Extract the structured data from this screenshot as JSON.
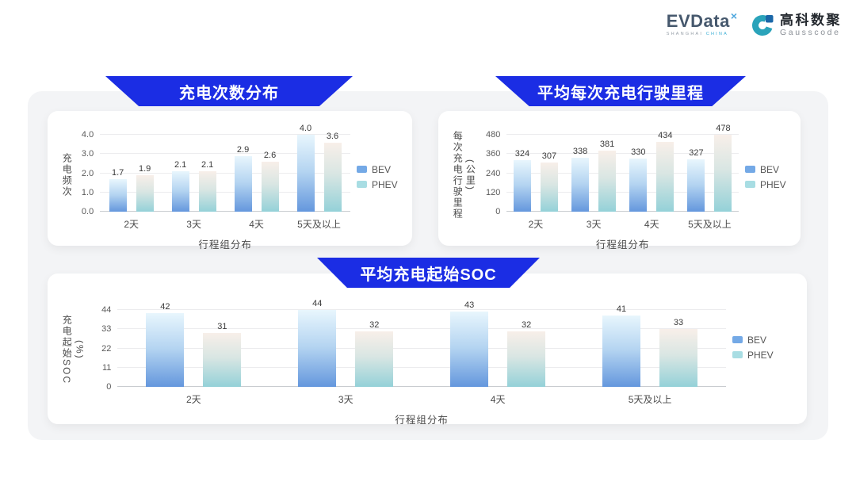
{
  "header": {
    "evdata": {
      "text": "EVData",
      "sup": "×",
      "sub_left": "SHANGHAI",
      "sub_right": "CHINA"
    },
    "gausscode": {
      "icon": "gausscode-g-icon",
      "name_cn": "高科数聚",
      "name_en": "Gausscode"
    }
  },
  "colors": {
    "banner_blue": "#1b2de4",
    "panel_gray": "#f3f4f6",
    "bev_bar_top": "#e8f6fd",
    "bev_bar_bottom": "#6497dd",
    "phev_bar_top": "#f8efe9",
    "phev_bar_bottom": "#94d1d8",
    "legend_bev_swatch": "#74a9e6",
    "legend_phev_swatch": "#a8dde3"
  },
  "chart_data": [
    {
      "type": "bar",
      "title": "充电次数分布",
      "categories": [
        "2天",
        "3天",
        "4天",
        "5天及以上"
      ],
      "series": [
        {
          "name": "BEV",
          "values": [
            1.7,
            2.1,
            2.9,
            4.0
          ],
          "labels": [
            "1.7",
            "2.1",
            "2.9",
            "4.0"
          ]
        },
        {
          "name": "PHEV",
          "values": [
            1.9,
            2.1,
            2.6,
            3.6
          ],
          "labels": [
            "1.9",
            "2.1",
            "2.6",
            "3.6"
          ]
        }
      ],
      "xlabel": "行程组分布",
      "ylabel": "充电频次",
      "ylabel_unit": "",
      "ylim": [
        0,
        4
      ],
      "yticks": [
        "0.0",
        "1.0",
        "2.0",
        "3.0",
        "4.0"
      ],
      "grid": true,
      "legend_position": "right"
    },
    {
      "type": "bar",
      "title": "平均每次充电行驶里程",
      "categories": [
        "2天",
        "3天",
        "4天",
        "5天及以上"
      ],
      "series": [
        {
          "name": "BEV",
          "values": [
            324,
            338,
            330,
            327
          ],
          "labels": [
            "324",
            "338",
            "330",
            "327"
          ]
        },
        {
          "name": "PHEV",
          "values": [
            307,
            381,
            434,
            478
          ],
          "labels": [
            "307",
            "381",
            "434",
            "478"
          ]
        }
      ],
      "xlabel": "行程组分布",
      "ylabel": "每次充电行驶里程",
      "ylabel_unit": "(公里)",
      "ylim": [
        0,
        480
      ],
      "yticks": [
        "0",
        "120",
        "240",
        "360",
        "480"
      ],
      "grid": true,
      "legend_position": "right"
    },
    {
      "type": "bar",
      "title": "平均充电起始SOC",
      "categories": [
        "2天",
        "3天",
        "4天",
        "5天及以上"
      ],
      "series": [
        {
          "name": "BEV",
          "values": [
            42,
            44,
            43,
            41
          ],
          "labels": [
            "42",
            "44",
            "43",
            "41"
          ]
        },
        {
          "name": "PHEV",
          "values": [
            31,
            32,
            32,
            33
          ],
          "labels": [
            "31",
            "32",
            "32",
            "33"
          ]
        }
      ],
      "xlabel": "行程组分布",
      "ylabel": "充电起始SOC",
      "ylabel_unit": "(%)",
      "ylim": [
        0,
        44
      ],
      "yticks": [
        "0",
        "11",
        "22",
        "33",
        "44"
      ],
      "grid": true,
      "legend_position": "right"
    }
  ]
}
